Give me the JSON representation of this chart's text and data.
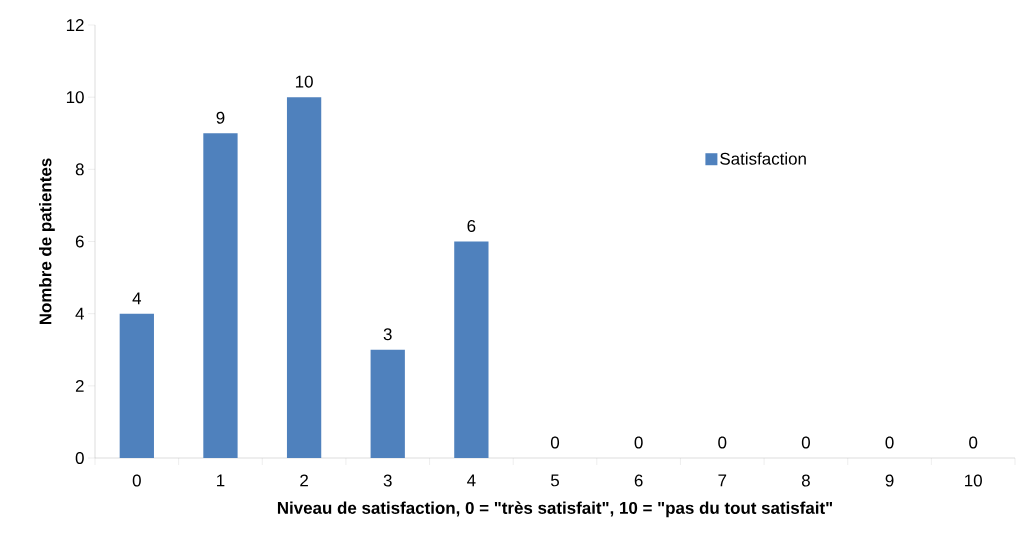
{
  "chart_data": {
    "type": "bar",
    "xlabel": "Niveau de satisfaction, 0 = \"très satisfait\", 10 = \"pas du tout satisfait\"",
    "ylabel": "Nombre de patientes",
    "categories": [
      "0",
      "1",
      "2",
      "3",
      "4",
      "5",
      "6",
      "7",
      "8",
      "9",
      "10"
    ],
    "series": [
      {
        "name": "Satisfaction",
        "color": "#4f81bd",
        "values": [
          4,
          9,
          10,
          3,
          6,
          0,
          0,
          0,
          0,
          0,
          0
        ]
      }
    ],
    "ylim": [
      0,
      12
    ],
    "yticks": [
      0,
      2,
      4,
      6,
      8,
      10,
      12
    ],
    "data_labels": true,
    "legend": "right",
    "grid": false
  }
}
